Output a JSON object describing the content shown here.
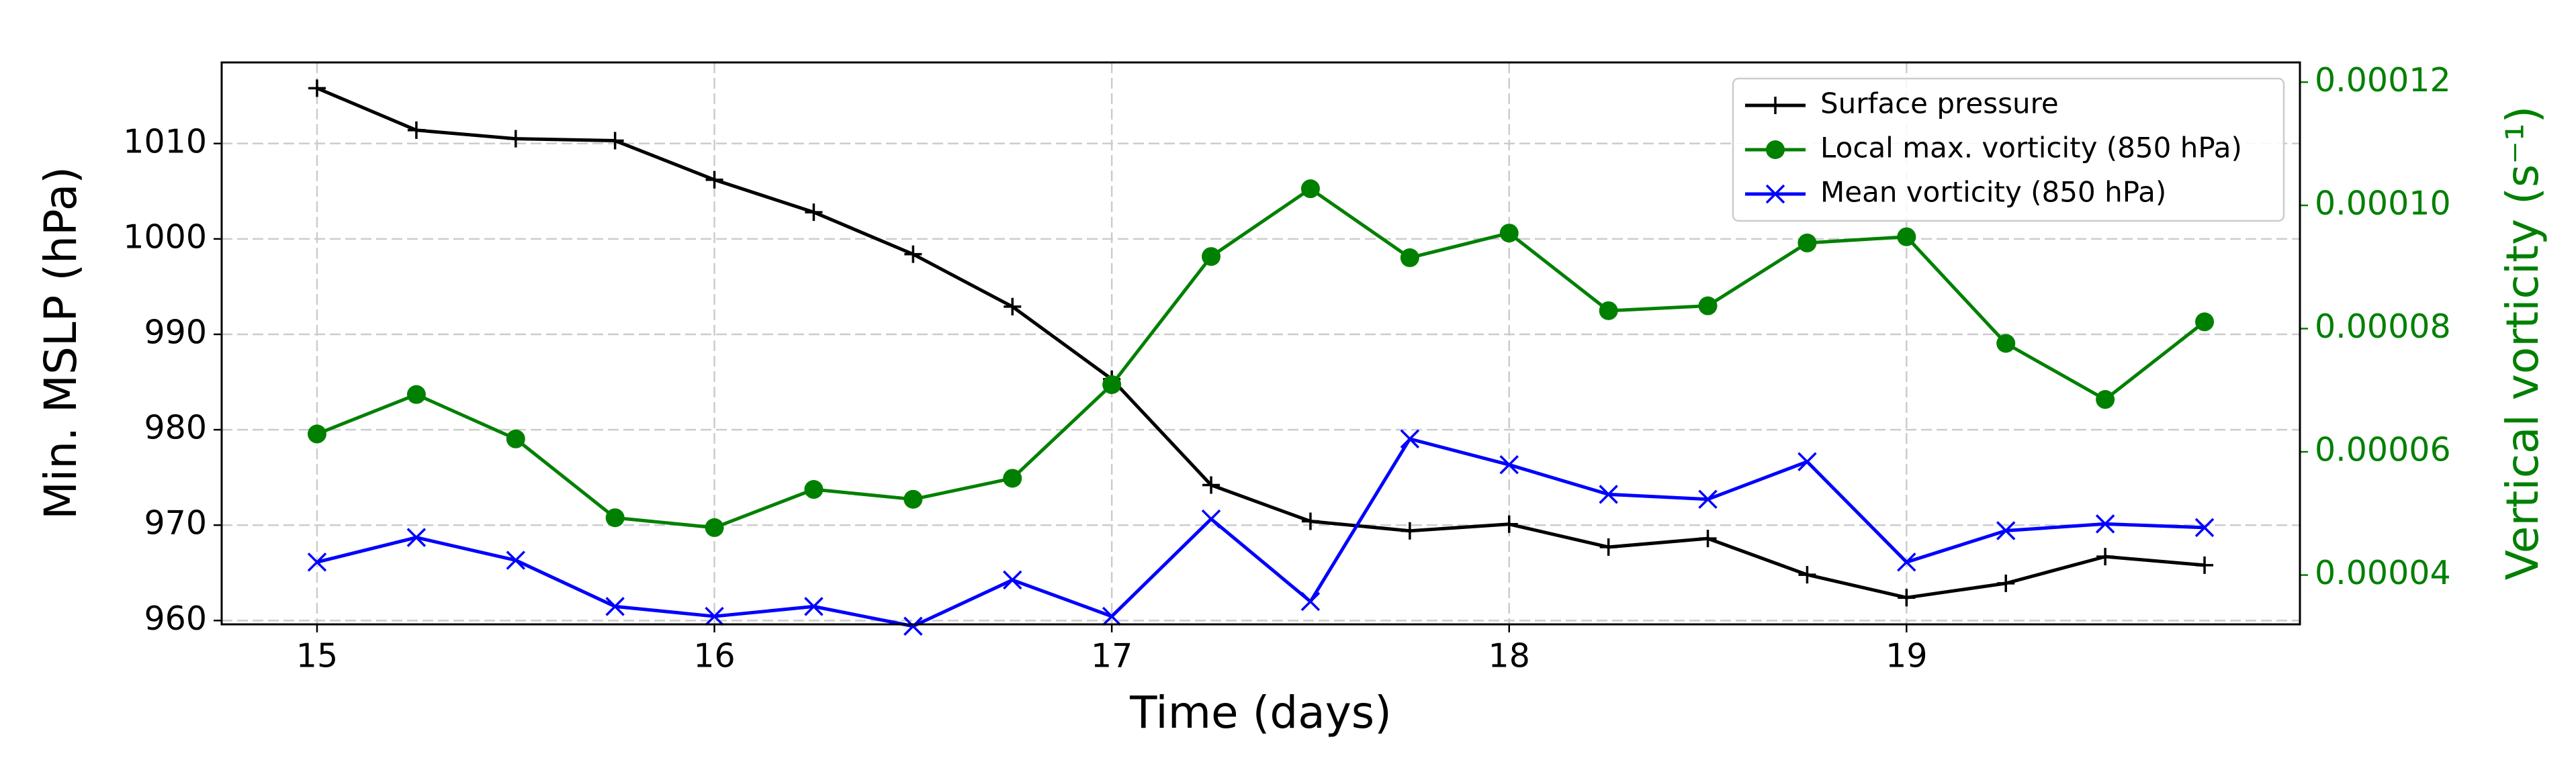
{
  "chart_data": {
    "type": "line",
    "x_label": "Time (days)",
    "y_label": "Min. MSLP (hPa)",
    "y2_label": "Vertical vorticity (s⁻¹)",
    "y2_label_color": "#008000",
    "x": [
      15,
      15.25,
      15.5,
      15.75,
      16,
      16.25,
      16.5,
      16.75,
      17,
      17.25,
      17.5,
      17.75,
      18,
      18.25,
      18.5,
      18.75,
      19,
      19.25,
      19.5,
      19.75
    ],
    "xlim": [
      14.76,
      19.99
    ],
    "xticks": [
      15,
      16,
      17,
      18,
      19
    ],
    "ylim": [
      959.6,
      1018.5
    ],
    "yticks": [
      960,
      970,
      980,
      990,
      1000,
      1010
    ],
    "y2lim": [
      3.2e-05,
      0.0001232
    ],
    "y2ticks": [
      {
        "value": 4e-05,
        "label": "0.00004"
      },
      {
        "value": 6e-05,
        "label": "0.00006"
      },
      {
        "value": 8e-05,
        "label": "0.00008"
      },
      {
        "value": 0.0001,
        "label": "0.00010"
      },
      {
        "value": 0.00012,
        "label": "0.00012"
      }
    ],
    "grid": true,
    "legend": "upper right",
    "series": [
      {
        "name": "Surface pressure",
        "color": "#000000",
        "marker": "plus",
        "axis": "y",
        "values": [
          1015.8,
          1011.4,
          1010.5,
          1010.3,
          1006.2,
          1002.8,
          998.4,
          992.9,
          985.3,
          974.2,
          970.4,
          969.4,
          970.1,
          967.7,
          968.6,
          964.8,
          962.4,
          963.9,
          966.7,
          965.8
        ]
      },
      {
        "name": "Local max. vorticity (850 hPa)",
        "color": "#008000",
        "marker": "circle",
        "axis": "y2",
        "values": [
          6.29e-05,
          6.93e-05,
          6.21e-05,
          4.93e-05,
          4.77e-05,
          5.39e-05,
          5.23e-05,
          5.57e-05,
          7.09e-05,
          9.17e-05,
          0.0001027,
          9.15e-05,
          9.55e-05,
          8.29e-05,
          8.37e-05,
          9.39e-05,
          9.49e-05,
          7.76e-05,
          6.85e-05,
          8.11e-05
        ]
      },
      {
        "name": "Mean vorticity (850 hPa)",
        "color": "#0000ff",
        "marker": "x",
        "axis": "y2",
        "values": [
          4.21e-05,
          4.61e-05,
          4.24e-05,
          3.49e-05,
          3.33e-05,
          3.49e-05,
          3.17e-05,
          3.92e-05,
          3.33e-05,
          4.91e-05,
          3.57e-05,
          6.21e-05,
          5.79e-05,
          5.31e-05,
          5.23e-05,
          5.84e-05,
          4.21e-05,
          4.72e-05,
          4.83e-05,
          4.77e-05
        ]
      }
    ]
  }
}
